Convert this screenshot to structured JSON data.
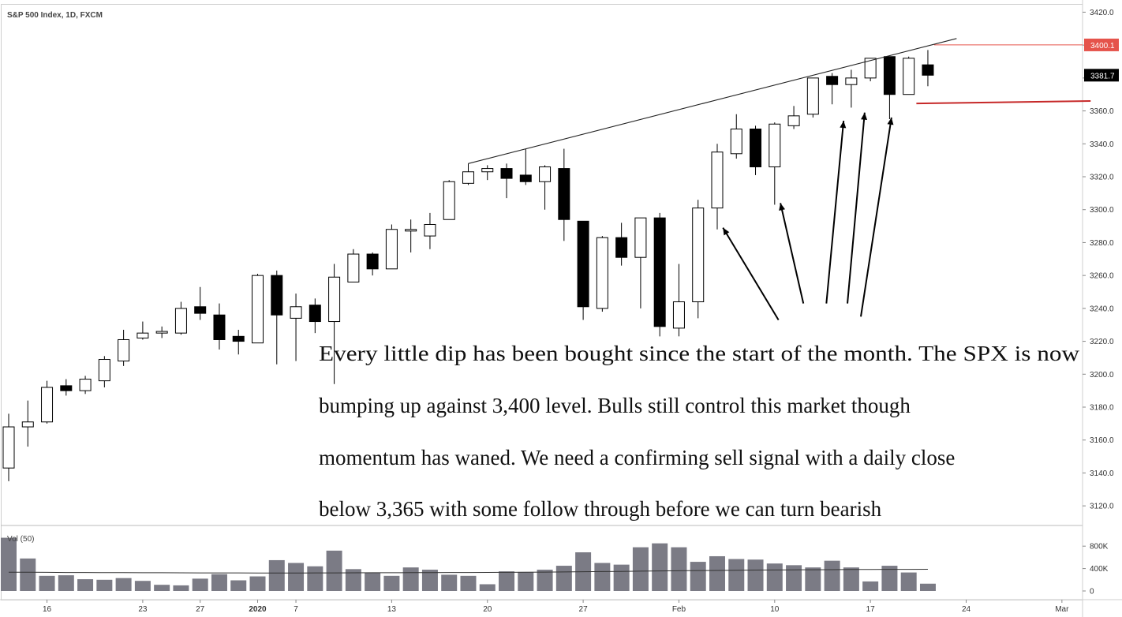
{
  "chart_data": {
    "type": "candlestick",
    "title": "S&P 500 Index, 1D, FXCM",
    "price_axis": {
      "range": [
        3110,
        3425
      ],
      "ticks": [
        3120,
        3140,
        3160,
        3180,
        3200,
        3220,
        3240,
        3260,
        3280,
        3300,
        3320,
        3340,
        3360,
        3380,
        3400,
        3420
      ],
      "tick_labels": [
        "3120.0",
        "3140.0",
        "3160.0",
        "3180.0",
        "3200.0",
        "3220.0",
        "3240.0",
        "3260.0",
        "3280.0",
        "3300.0",
        "3320.0",
        "3340.0",
        "3360.0",
        "3380.0",
        "3400.0",
        "3420.0"
      ]
    },
    "time_axis": {
      "ticks": [
        {
          "label": "16",
          "index": 2
        },
        {
          "label": "23",
          "index": 7
        },
        {
          "label": "27",
          "index": 10
        },
        {
          "label": "2020",
          "index": 13
        },
        {
          "label": "7",
          "index": 15
        },
        {
          "label": "13",
          "index": 20
        },
        {
          "label": "20",
          "index": 25
        },
        {
          "label": "27",
          "index": 30
        },
        {
          "label": "Feb",
          "index": 35
        },
        {
          "label": "10",
          "index": 40
        },
        {
          "label": "17",
          "index": 45
        },
        {
          "label": "24",
          "index": 50
        },
        {
          "label": "Mar",
          "index": 55
        }
      ]
    },
    "candles": [
      {
        "o": 3143,
        "h": 3176,
        "l": 3135,
        "c": 3168
      },
      {
        "o": 3168,
        "h": 3184,
        "l": 3156,
        "c": 3171
      },
      {
        "o": 3171,
        "h": 3196,
        "l": 3170,
        "c": 3192
      },
      {
        "o": 3193,
        "h": 3197,
        "l": 3187,
        "c": 3190
      },
      {
        "o": 3190,
        "h": 3199,
        "l": 3188,
        "c": 3197
      },
      {
        "o": 3196,
        "h": 3211,
        "l": 3192,
        "c": 3209
      },
      {
        "o": 3208,
        "h": 3227,
        "l": 3205,
        "c": 3221
      },
      {
        "o": 3222,
        "h": 3232,
        "l": 3221,
        "c": 3225
      },
      {
        "o": 3225,
        "h": 3229,
        "l": 3222,
        "c": 3226
      },
      {
        "o": 3225,
        "h": 3244,
        "l": 3224,
        "c": 3240
      },
      {
        "o": 3241,
        "h": 3253,
        "l": 3233,
        "c": 3237
      },
      {
        "o": 3236,
        "h": 3243,
        "l": 3215,
        "c": 3221
      },
      {
        "o": 3223,
        "h": 3227,
        "l": 3212,
        "c": 3220
      },
      {
        "o": 3219,
        "h": 3261,
        "l": 3219,
        "c": 3260
      },
      {
        "o": 3260,
        "h": 3263,
        "l": 3206,
        "c": 3236
      },
      {
        "o": 3234,
        "h": 3249,
        "l": 3208,
        "c": 3241
      },
      {
        "o": 3242,
        "h": 3246,
        "l": 3225,
        "c": 3232
      },
      {
        "o": 3232,
        "h": 3267,
        "l": 3194,
        "c": 3259
      },
      {
        "o": 3256,
        "h": 3276,
        "l": 3256,
        "c": 3273
      },
      {
        "o": 3273,
        "h": 3274,
        "l": 3260,
        "c": 3264
      },
      {
        "o": 3264,
        "h": 3291,
        "l": 3264,
        "c": 3288
      },
      {
        "o": 3287,
        "h": 3294,
        "l": 3274,
        "c": 3288
      },
      {
        "o": 3284,
        "h": 3298,
        "l": 3276,
        "c": 3291
      },
      {
        "o": 3294,
        "h": 3318,
        "l": 3294,
        "c": 3317
      },
      {
        "o": 3316,
        "h": 3328,
        "l": 3315,
        "c": 3323
      },
      {
        "o": 3323,
        "h": 3327,
        "l": 3318,
        "c": 3325
      },
      {
        "o": 3325,
        "h": 3328,
        "l": 3307,
        "c": 3319
      },
      {
        "o": 3321,
        "h": 3337,
        "l": 3315,
        "c": 3317
      },
      {
        "o": 3317,
        "h": 3327,
        "l": 3300,
        "c": 3326
      },
      {
        "o": 3325,
        "h": 3337,
        "l": 3281,
        "c": 3294
      },
      {
        "o": 3293,
        "h": 3293,
        "l": 3233,
        "c": 3241
      },
      {
        "o": 3240,
        "h": 3284,
        "l": 3238,
        "c": 3283
      },
      {
        "o": 3283,
        "h": 3292,
        "l": 3266,
        "c": 3271
      },
      {
        "o": 3271,
        "h": 3295,
        "l": 3240,
        "c": 3295
      },
      {
        "o": 3295,
        "h": 3298,
        "l": 3223,
        "c": 3229
      },
      {
        "o": 3228,
        "h": 3267,
        "l": 3223,
        "c": 3244
      },
      {
        "o": 3244,
        "h": 3306,
        "l": 3234,
        "c": 3301
      },
      {
        "o": 3301,
        "h": 3340,
        "l": 3288,
        "c": 3335
      },
      {
        "o": 3334,
        "h": 3358,
        "l": 3331,
        "c": 3349
      },
      {
        "o": 3349,
        "h": 3351,
        "l": 3321,
        "c": 3326
      },
      {
        "o": 3326,
        "h": 3353,
        "l": 3303,
        "c": 3352
      },
      {
        "o": 3351,
        "h": 3363,
        "l": 3349,
        "c": 3357
      },
      {
        "o": 3358,
        "h": 3380,
        "l": 3356,
        "c": 3380
      },
      {
        "o": 3381,
        "h": 3383,
        "l": 3364,
        "c": 3376
      },
      {
        "o": 3376,
        "h": 3385,
        "l": 3362,
        "c": 3380
      },
      {
        "o": 3380,
        "h": 3392,
        "l": 3378,
        "c": 3392
      },
      {
        "o": 3393,
        "h": 3393,
        "l": 3355,
        "c": 3370
      },
      {
        "o": 3370,
        "h": 3393,
        "l": 3370,
        "c": 3392
      },
      {
        "o": 3388,
        "h": 3397,
        "l": 3375,
        "c": 3381.7
      }
    ],
    "volume": {
      "label": "Vol (50)",
      "axis_ticks": [
        0,
        400000,
        800000
      ],
      "axis_labels": [
        "0",
        "400K",
        "800K"
      ],
      "values": [
        950000,
        580000,
        270000,
        280000,
        210000,
        200000,
        230000,
        180000,
        110000,
        100000,
        220000,
        300000,
        190000,
        260000,
        550000,
        500000,
        440000,
        720000,
        390000,
        330000,
        270000,
        420000,
        380000,
        290000,
        270000,
        120000,
        350000,
        340000,
        380000,
        450000,
        690000,
        500000,
        470000,
        780000,
        850000,
        780000,
        520000,
        620000,
        570000,
        560000,
        490000,
        460000,
        420000,
        540000,
        420000,
        170000,
        450000,
        330000,
        130000
      ],
      "ma": [
        335000,
        334000,
        332000,
        330000,
        329000,
        328000,
        327000,
        326000,
        325000,
        324000,
        323000,
        322000,
        322000,
        321000,
        321000,
        321000,
        322000,
        323000,
        324000,
        325000,
        326000,
        327000,
        328000,
        329000,
        330000,
        331000,
        333000,
        335000,
        337000,
        340000,
        343000,
        346000,
        349000,
        353000,
        357000,
        361000,
        364000,
        367000,
        370000,
        373000,
        375000,
        377000,
        379000,
        381000,
        383000,
        384000,
        385000,
        386000,
        387000
      ]
    },
    "price_labels": [
      {
        "value": 3400.1,
        "text": "3400.1",
        "color": "#e5534b"
      },
      {
        "value": 3381.7,
        "text": "3381.7",
        "color": "#000000"
      }
    ],
    "trendline": {
      "from": {
        "index": 24,
        "price": 3328
      },
      "to": {
        "index": 49.5,
        "price": 3404
      }
    },
    "support_line": {
      "from": {
        "index": 47.4,
        "price": 3364.5
      },
      "to": {
        "index": 56.5,
        "price": 3366
      },
      "color": "#c62828"
    },
    "resistance_level": {
      "price": 3400.1,
      "color": "#e5534b"
    },
    "arrows": [
      {
        "from": {
          "index": 40.2,
          "price": 3233
        },
        "to": {
          "index": 37.3,
          "price": 3289
        }
      },
      {
        "from": {
          "index": 41.5,
          "price": 3243
        },
        "to": {
          "index": 40.3,
          "price": 3304
        }
      },
      {
        "from": {
          "index": 42.7,
          "price": 3243
        },
        "to": {
          "index": 43.6,
          "price": 3354
        }
      },
      {
        "from": {
          "index": 43.8,
          "price": 3243
        },
        "to": {
          "index": 44.7,
          "price": 3359
        }
      },
      {
        "from": {
          "index": 44.5,
          "price": 3235
        },
        "to": {
          "index": 46.1,
          "price": 3356
        }
      }
    ],
    "annotation_lines": [
      "Every little dip has been bought since the start of the month. The SPX is now",
      "bumping up against 3,400 level. Bulls still control this market though",
      "momentum has waned. We need a confirming sell signal with a daily close",
      "below 3,365 with some follow through before we can turn bearish"
    ]
  }
}
